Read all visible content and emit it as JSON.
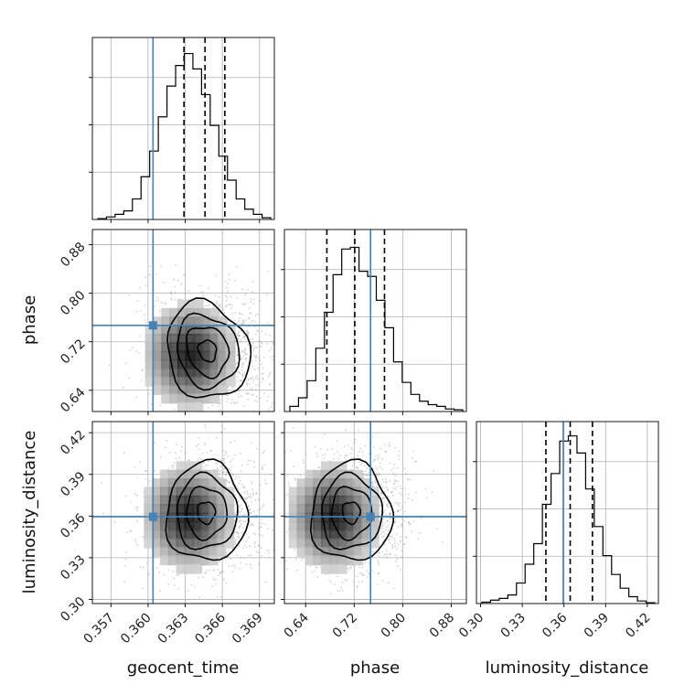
{
  "chart_data": {
    "type": "corner",
    "parameters": [
      "geocent_time",
      "phase",
      "luminosity_distance"
    ],
    "axis_labels": {
      "geocent_time": "geocent_time",
      "phase": "phase",
      "luminosity_distance": "luminosity_distance"
    },
    "tick_labels": {
      "geocent_time": [
        "0.357",
        "0.360",
        "0.363",
        "0.366",
        "0.369"
      ],
      "phase": [
        "0.64",
        "0.72",
        "0.80",
        "0.88"
      ],
      "luminosity_distance": [
        "0.30",
        "0.33",
        "0.36",
        "0.39",
        "0.42"
      ]
    },
    "ranges": {
      "geocent_time": [
        0.3555,
        0.3702
      ],
      "phase": [
        0.605,
        0.905
      ],
      "luminosity_distance": [
        0.297,
        0.428
      ]
    },
    "truths": {
      "geocent_time": 0.3604,
      "phase": 0.747,
      "luminosity_distance": 0.3595
    },
    "quantiles": {
      "geocent_time": [
        0.3629,
        0.3646,
        0.3662
      ],
      "phase": [
        0.675,
        0.721,
        0.77
      ],
      "luminosity_distance": [
        0.347,
        0.3645,
        0.3805
      ]
    },
    "histograms": {
      "geocent_time": [
        0.005,
        0.015,
        0.03,
        0.05,
        0.12,
        0.25,
        0.4,
        0.6,
        0.78,
        0.9,
        0.97,
        0.88,
        0.73,
        0.55,
        0.37,
        0.23,
        0.12,
        0.06,
        0.03,
        0.01
      ],
      "phase": [
        0.03,
        0.08,
        0.18,
        0.37,
        0.58,
        0.8,
        0.95,
        0.96,
        0.82,
        0.79,
        0.65,
        0.49,
        0.29,
        0.17,
        0.1,
        0.06,
        0.04,
        0.03,
        0.015,
        0.01
      ],
      "luminosity_distance": [
        0.008,
        0.02,
        0.03,
        0.05,
        0.12,
        0.23,
        0.35,
        0.58,
        0.76,
        0.95,
        0.98,
        0.88,
        0.67,
        0.45,
        0.28,
        0.17,
        0.09,
        0.04,
        0.015,
        0.005
      ]
    },
    "pair_peaks": {
      "phase|geocent_time": {
        "x": 0.3648,
        "y": 0.705
      },
      "luminosity_distance|geocent_time": {
        "x": 0.3647,
        "y": 0.3625
      },
      "luminosity_distance|phase": {
        "x": 0.715,
        "y": 0.3625
      }
    },
    "colors": {
      "truth": "#4682b4",
      "histogram": "#000000",
      "grid": "#b0b0b0",
      "contour": "#000000",
      "points": "#7f7f7f"
    },
    "grid": true
  }
}
